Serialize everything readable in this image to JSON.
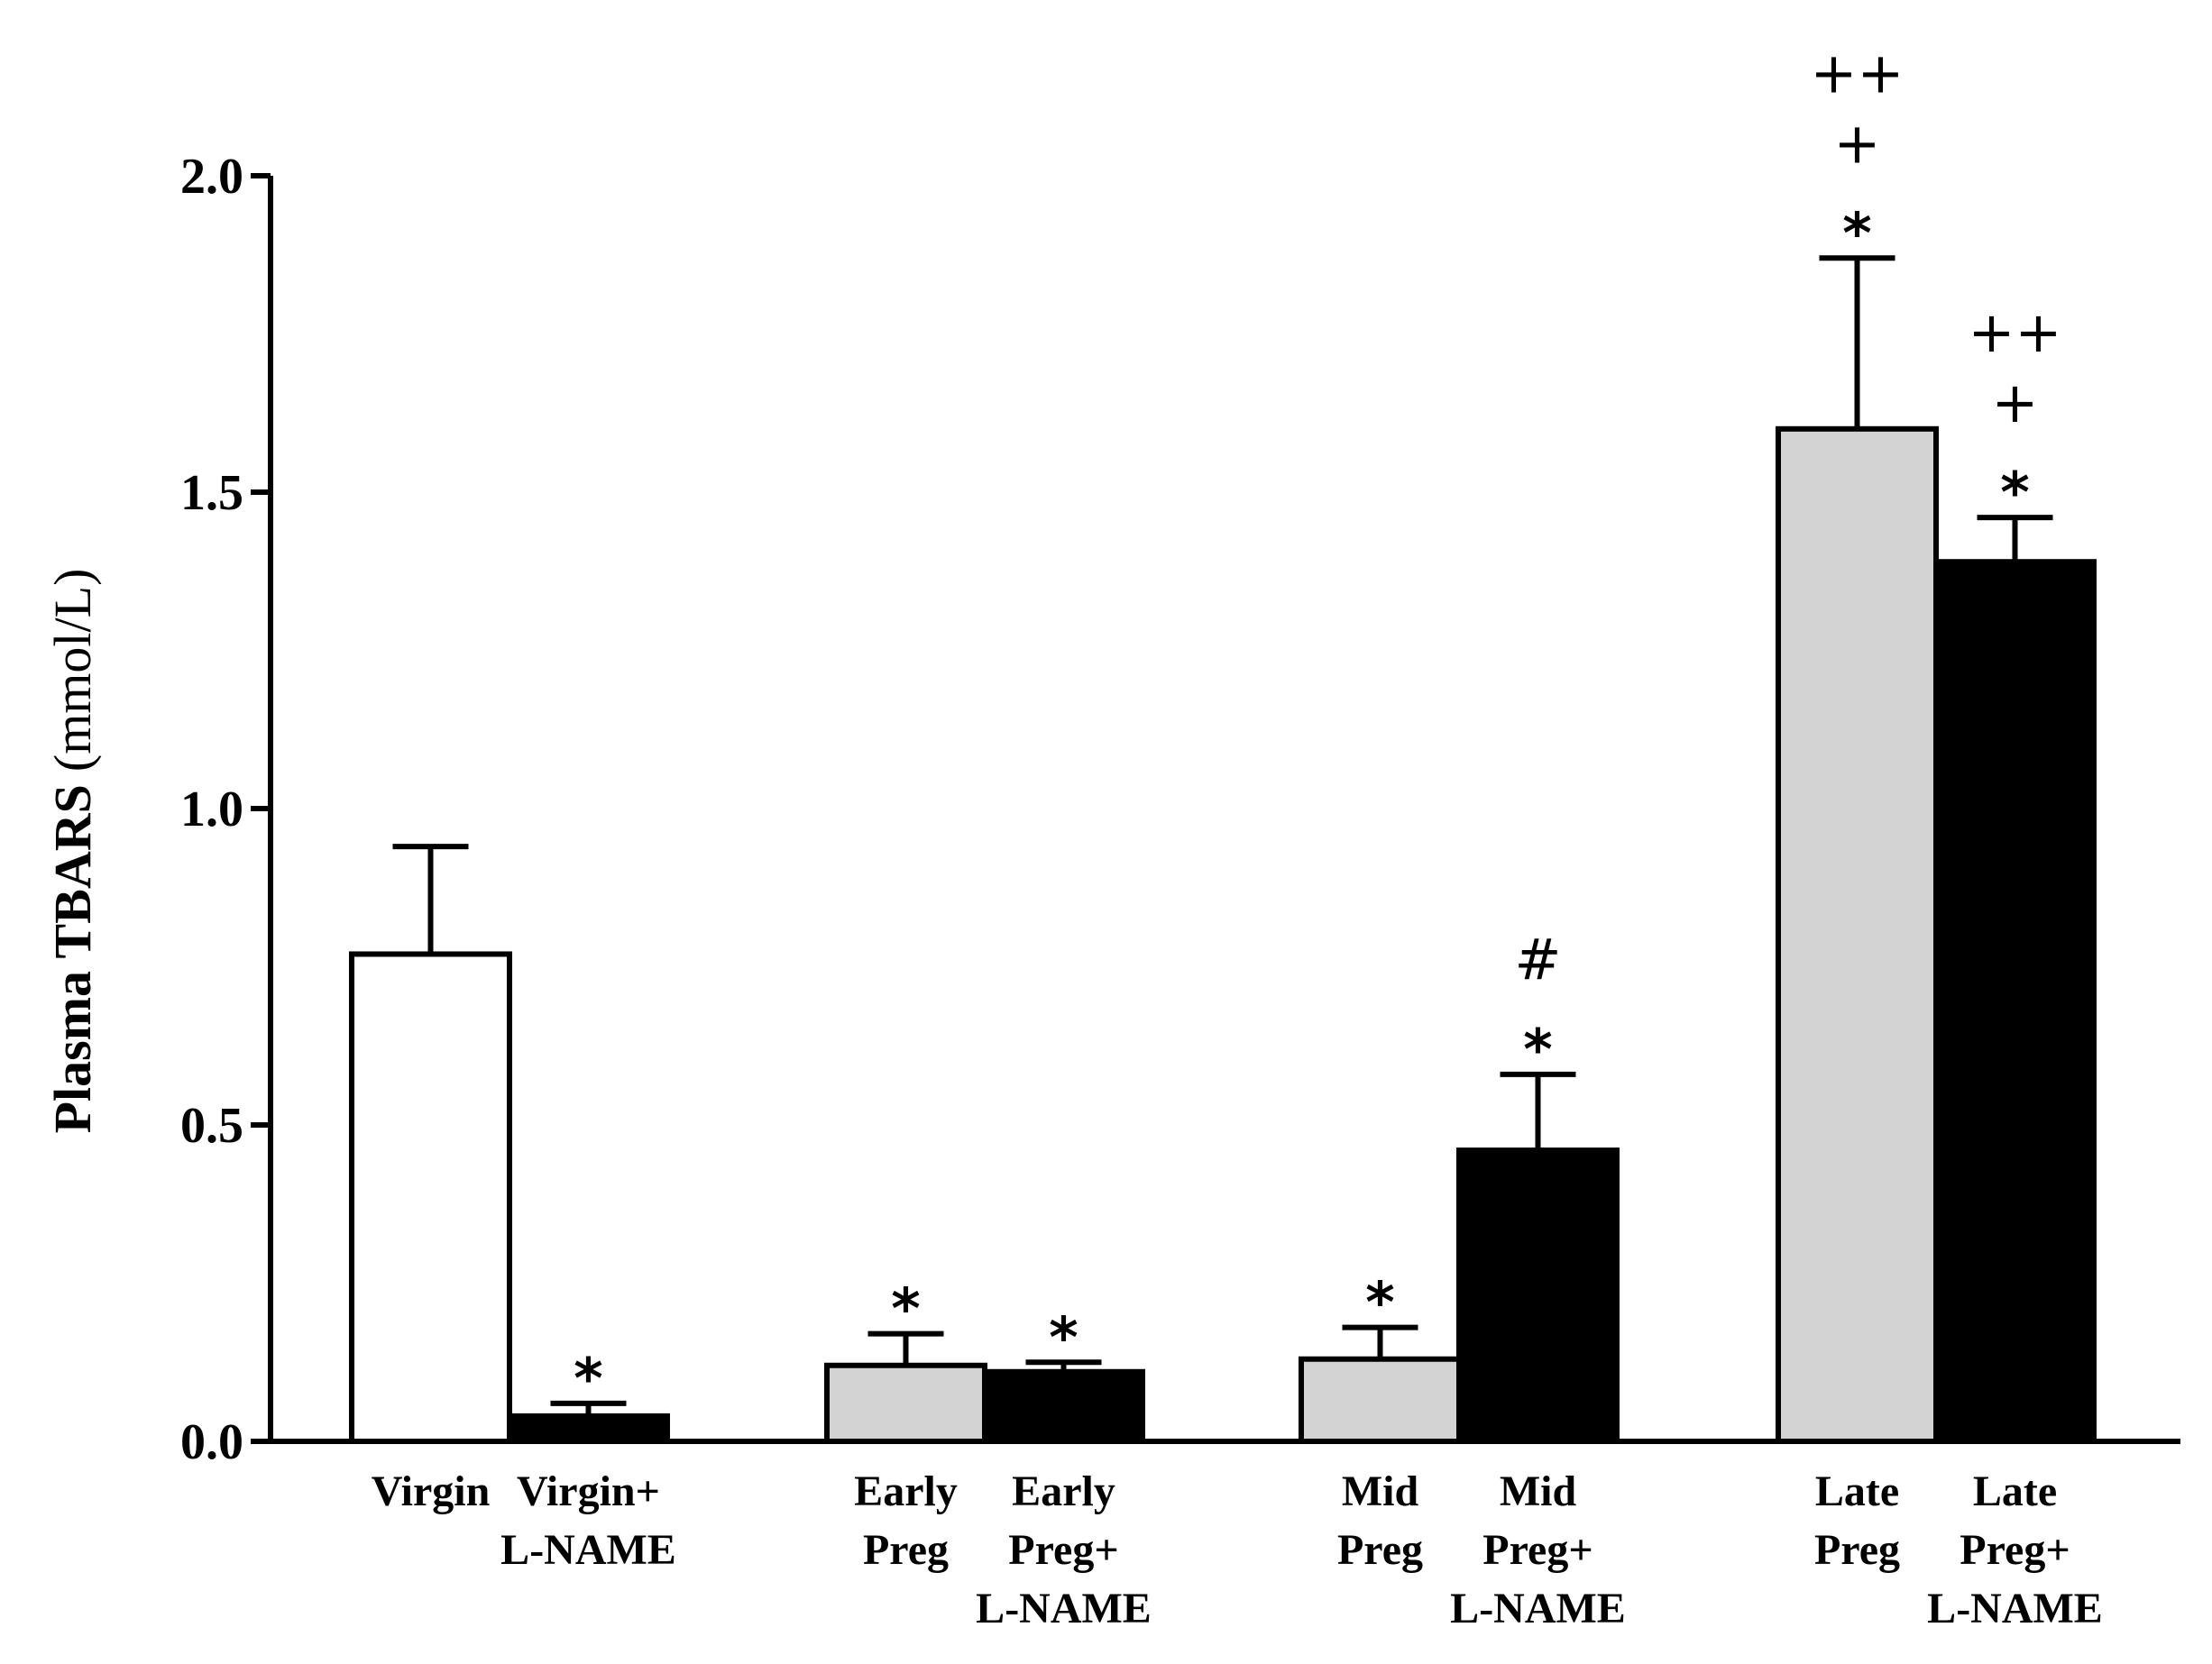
{
  "chart_data": {
    "type": "bar",
    "title": "",
    "xlabel": "",
    "ylabel_bold": "Plasma TBARS",
    "ylabel_unit": "(mmol/L)",
    "ylim": [
      0,
      2.0
    ],
    "yticks": [
      "0.0",
      "0.5",
      "1.0",
      "1.5",
      "2.0"
    ],
    "colors": {
      "white": "#ffffff",
      "gray": "#d3d3d3",
      "black": "#000000"
    },
    "groups": [
      {
        "name": "virgin",
        "bars": [
          {
            "label": [
              "Virgin"
            ],
            "value": 0.77,
            "err": 0.17,
            "color": "white",
            "marks": []
          },
          {
            "label": [
              "Virgin+",
              "L-NAME"
            ],
            "value": 0.04,
            "err": 0.02,
            "color": "black",
            "marks": [
              "*"
            ]
          }
        ]
      },
      {
        "name": "early",
        "bars": [
          {
            "label": [
              "Early",
              "Preg"
            ],
            "value": 0.12,
            "err": 0.05,
            "color": "gray",
            "marks": [
              "*"
            ]
          },
          {
            "label": [
              "Early",
              "Preg+",
              "L-NAME"
            ],
            "value": 0.11,
            "err": 0.015,
            "color": "black",
            "marks": [
              "*"
            ]
          }
        ]
      },
      {
        "name": "mid",
        "bars": [
          {
            "label": [
              "Mid",
              "Preg"
            ],
            "value": 0.13,
            "err": 0.05,
            "color": "gray",
            "marks": [
              "*"
            ]
          },
          {
            "label": [
              "Mid",
              "Preg+",
              "L-NAME"
            ],
            "value": 0.46,
            "err": 0.12,
            "color": "black",
            "marks": [
              "*",
              "#"
            ]
          }
        ]
      },
      {
        "name": "late",
        "bars": [
          {
            "label": [
              "Late",
              "Preg"
            ],
            "value": 1.6,
            "err": 0.27,
            "color": "gray",
            "marks": [
              "*",
              "+",
              "++"
            ]
          },
          {
            "label": [
              "Late",
              "Preg+",
              "L-NAME"
            ],
            "value": 1.39,
            "err": 0.07,
            "color": "black",
            "marks": [
              "*",
              "+",
              "++"
            ]
          }
        ]
      }
    ]
  }
}
